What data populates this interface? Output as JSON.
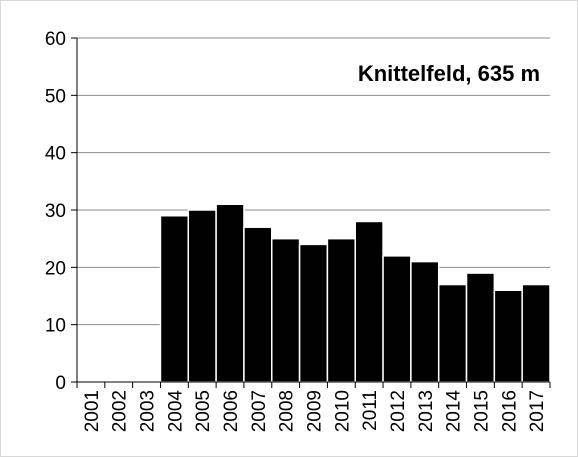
{
  "chart_data": {
    "type": "bar",
    "title": "Knittelfeld, 635 m",
    "xlabel": "",
    "ylabel": "",
    "categories": [
      "2001",
      "2002",
      "2003",
      "2004",
      "2005",
      "2006",
      "2007",
      "2008",
      "2009",
      "2010",
      "2011",
      "2012",
      "2013",
      "2014",
      "2015",
      "2016",
      "2017"
    ],
    "values": [
      0,
      0,
      0,
      29,
      30,
      31,
      27,
      25,
      24,
      25,
      28,
      22,
      21,
      17,
      19,
      16,
      17
    ],
    "ylim": [
      0,
      60
    ],
    "yticks": [
      "0",
      "10",
      "20",
      "30",
      "40",
      "50",
      "60"
    ],
    "grid": true,
    "legend": "none",
    "colors": {
      "bar": "#000000",
      "bar_edge": "#ffffff",
      "grid": "#8c8c8c",
      "axis": "#000000"
    }
  }
}
